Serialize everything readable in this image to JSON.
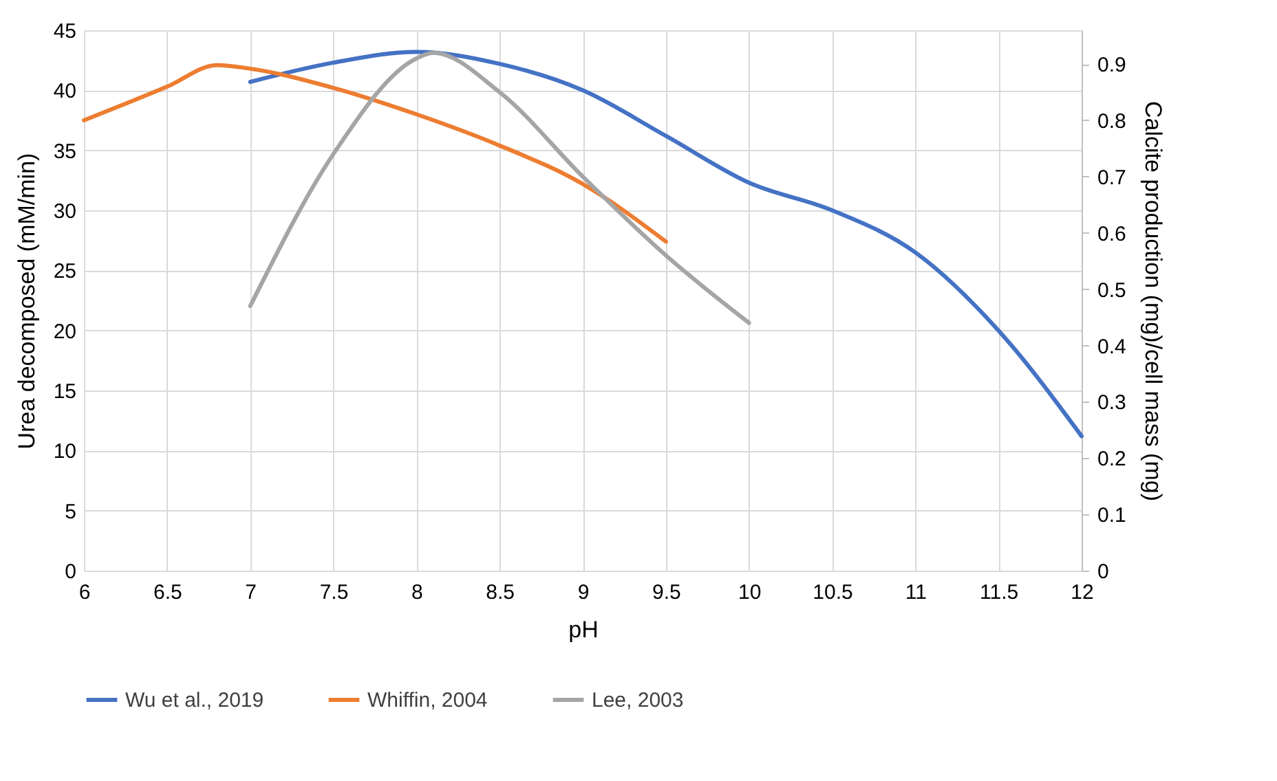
{
  "chart_data": {
    "type": "line",
    "xlabel": "pH",
    "ylabel": "Urea decomposed (mM/min)",
    "y2label": "Calcite production (mg)/cell mass (mg)",
    "xlim": [
      6,
      12
    ],
    "xticks": [
      6,
      6.5,
      7,
      7.5,
      8,
      8.5,
      9,
      9.5,
      10,
      10.5,
      11,
      11.5,
      12
    ],
    "ylim": [
      0,
      45
    ],
    "yticks": [
      0,
      5,
      10,
      15,
      20,
      25,
      30,
      35,
      40,
      45
    ],
    "y2lim": [
      0,
      0.96
    ],
    "y2ticks": [
      0,
      0.1,
      0.2,
      0.3,
      0.4,
      0.5,
      0.6,
      0.7,
      0.8,
      0.9
    ],
    "grid": true,
    "legend": "bottom",
    "marker": "none",
    "line_style": "solid",
    "series": [
      {
        "name": "Wu et al., 2019",
        "color": "#4472c4",
        "x": [
          7,
          7.5,
          8,
          8.5,
          9,
          9.5,
          10,
          10.5,
          11,
          11.5,
          12
        ],
        "values": [
          40.7,
          42.3,
          43.2,
          42.2,
          40,
          36.2,
          32.3,
          30,
          26.5,
          20,
          11.2
        ]
      },
      {
        "name": "Whiffin, 2004",
        "color": "#ed7d31",
        "x": [
          6,
          6.5,
          6.8,
          7,
          7.5,
          8,
          8.5,
          9,
          9.5
        ],
        "values": [
          37.5,
          40.3,
          42.1,
          41.8,
          40.2,
          38,
          35.4,
          32.2,
          27.4
        ]
      },
      {
        "name": "Lee, 2003",
        "color": "#a5a5a5",
        "axis": "y2",
        "x": [
          7,
          7.5,
          8,
          8.1,
          8.5,
          9,
          9.5,
          10
        ],
        "values": [
          0.47,
          0.74,
          0.91,
          0.92,
          0.85,
          0.7,
          0.56,
          0.44
        ]
      }
    ]
  }
}
